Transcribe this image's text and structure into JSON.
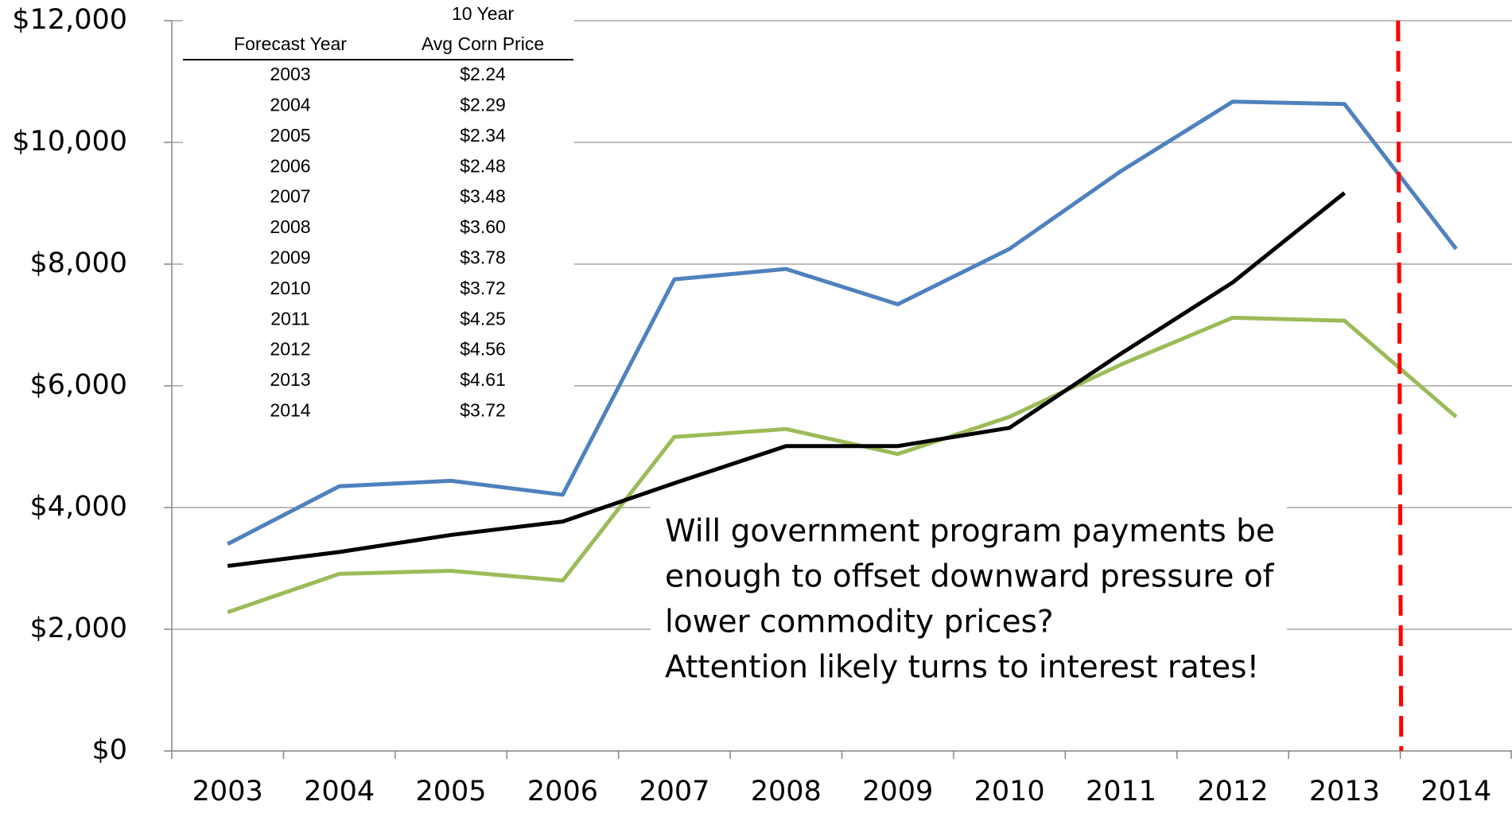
{
  "chart_data": {
    "type": "line",
    "categories": [
      "2003",
      "2004",
      "2005",
      "2006",
      "2007",
      "2008",
      "2009",
      "2010",
      "2011",
      "2012",
      "2013",
      "2014"
    ],
    "series": [
      {
        "color": "#4f81bd",
        "values": [
          3400,
          4350,
          4440,
          4210,
          7750,
          7920,
          7340,
          8250,
          9530,
          10670,
          10630,
          8250
        ]
      },
      {
        "color": "#9bbb59",
        "values": [
          2280,
          2910,
          2960,
          2800,
          5160,
          5290,
          4880,
          5490,
          6350,
          7120,
          7070,
          5490
        ]
      },
      {
        "color": "#000000",
        "values": [
          3040,
          3270,
          3550,
          3770,
          4400,
          5010,
          5010,
          5310,
          6530,
          7700,
          9170,
          null
        ]
      }
    ],
    "ylim": [
      0,
      12000
    ],
    "yticks": [
      {
        "value": 0,
        "label": "$0"
      },
      {
        "value": 2000,
        "label": "$2,000"
      },
      {
        "value": 4000,
        "label": "$4,000"
      },
      {
        "value": 6000,
        "label": "$6,000"
      },
      {
        "value": 8000,
        "label": "$8,000"
      },
      {
        "value": 10000,
        "label": "$10,000"
      },
      {
        "value": 12000,
        "label": "$12,000"
      }
    ],
    "grid": true,
    "marker_line_color": "#ff0000",
    "table": {
      "columns": [
        [
          "Forecast Year"
        ],
        [
          "10 Year",
          "Avg Corn Price"
        ]
      ],
      "rows": [
        [
          "2003",
          "$2.24"
        ],
        [
          "2004",
          "$2.29"
        ],
        [
          "2005",
          "$2.34"
        ],
        [
          "2006",
          "$2.48"
        ],
        [
          "2007",
          "$3.48"
        ],
        [
          "2008",
          "$3.60"
        ],
        [
          "2009",
          "$3.78"
        ],
        [
          "2010",
          "$3.72"
        ],
        [
          "2011",
          "$4.25"
        ],
        [
          "2012",
          "$4.56"
        ],
        [
          "2013",
          "$4.61"
        ],
        [
          "2014",
          "$3.72"
        ]
      ]
    },
    "annotation": [
      "Will government program payments be",
      "enough to offset downward pressure of",
      "lower commodity prices?",
      "Attention likely turns to interest rates!"
    ]
  }
}
